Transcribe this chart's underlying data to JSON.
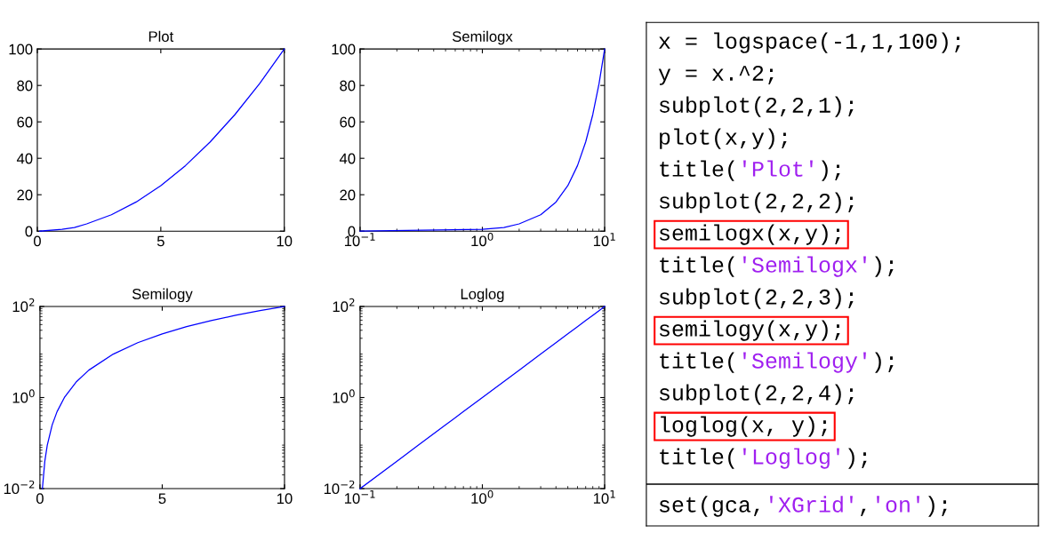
{
  "chart_data": [
    {
      "type": "line",
      "title": "Plot",
      "x": [
        0.1,
        1,
        1.5,
        2,
        3,
        4,
        5,
        6,
        7,
        8,
        9,
        10
      ],
      "series": [
        {
          "color": "#0000ff",
          "values": [
            0,
            1,
            2,
            4,
            9,
            16,
            25,
            36,
            49,
            64,
            81,
            100
          ]
        }
      ],
      "xlim": [
        0,
        10
      ],
      "xticks": [
        0,
        5,
        10
      ],
      "ylim": [
        0,
        100
      ],
      "yticks": [
        0,
        20,
        40,
        60,
        80,
        100
      ]
    },
    {
      "type": "line",
      "title": "Semilogx",
      "log": "x",
      "x": [
        0.1,
        1,
        1.5,
        2,
        3,
        4,
        5,
        6,
        7,
        8,
        9,
        10
      ],
      "series": [
        {
          "color": "#0000ff",
          "values": [
            0,
            1,
            2,
            4,
            9,
            16,
            25,
            36,
            49,
            64,
            81,
            100
          ]
        }
      ],
      "xlim": [
        0.1,
        10
      ],
      "xticks": [
        {
          "value": 0.1,
          "label": "10$^{−1}$"
        },
        {
          "value": 1,
          "label": "10$^{0}$"
        },
        {
          "value": 10,
          "label": "10$^{1}$"
        }
      ],
      "ylim": [
        0,
        100
      ],
      "yticks": [
        0,
        20,
        40,
        60,
        80,
        100
      ]
    },
    {
      "type": "line",
      "title": "Semilogy",
      "log": "y",
      "x": [
        0.1,
        0.2,
        0.3,
        0.5,
        0.7,
        1,
        1.5,
        2,
        3,
        4,
        5,
        6,
        7,
        8,
        9,
        10
      ],
      "series": [
        {
          "color": "#0000ff",
          "values": [
            0.01,
            0.04,
            0.09,
            0.25,
            0.49,
            1,
            2.25,
            4,
            9,
            16,
            25,
            36,
            49,
            64,
            81,
            100
          ]
        }
      ],
      "xlim": [
        0,
        10
      ],
      "xticks": [
        0,
        5,
        10
      ],
      "ylim": [
        0.01,
        100
      ],
      "yticks": [
        {
          "value": 0.01,
          "label": "10$^{−2}$"
        },
        {
          "value": 1,
          "label": "10$^{0}$"
        },
        {
          "value": 100,
          "label": "10$^{2}$"
        }
      ]
    },
    {
      "type": "line",
      "title": "Loglog",
      "log": "xy",
      "x": [
        0.1,
        0.2,
        0.3,
        0.5,
        0.7,
        1,
        1.5,
        2,
        3,
        4,
        5,
        6,
        7,
        8,
        9,
        10
      ],
      "series": [
        {
          "color": "#0000ff",
          "values": [
            0.01,
            0.04,
            0.09,
            0.25,
            0.49,
            1,
            2.25,
            4,
            9,
            16,
            25,
            36,
            49,
            64,
            81,
            100
          ]
        }
      ],
      "xlim": [
        0.1,
        10
      ],
      "xticks": [
        {
          "value": 0.1,
          "label": "10$^{−1}$"
        },
        {
          "value": 1,
          "label": "10$^{0}$"
        },
        {
          "value": 10,
          "label": "10$^{1}$"
        }
      ],
      "ylim": [
        0.01,
        100
      ],
      "yticks": [
        {
          "value": 0.01,
          "label": "10$^{−2}$"
        },
        {
          "value": 1,
          "label": "10$^{0}$"
        },
        {
          "value": 100,
          "label": "10$^{2}$"
        }
      ]
    },
    {
      "type": "other",
      "annotations": [
        "x = logspace(-1,1,100);",
        "y = x.^2;",
        "subplot(2,2,1);",
        "plot(x,y);",
        "title('Plot');",
        "subplot(2,2,2);",
        "semilogx(x,y);",
        "title('Semilogx');",
        "subplot(2,2,3);",
        "semilogy(x,y);",
        "title('Semilogy');",
        "subplot(2,2,4);",
        "loglog(x, y);",
        "title('Loglog');",
        "set(gca,'XGrid','on');"
      ]
    }
  ]
}
